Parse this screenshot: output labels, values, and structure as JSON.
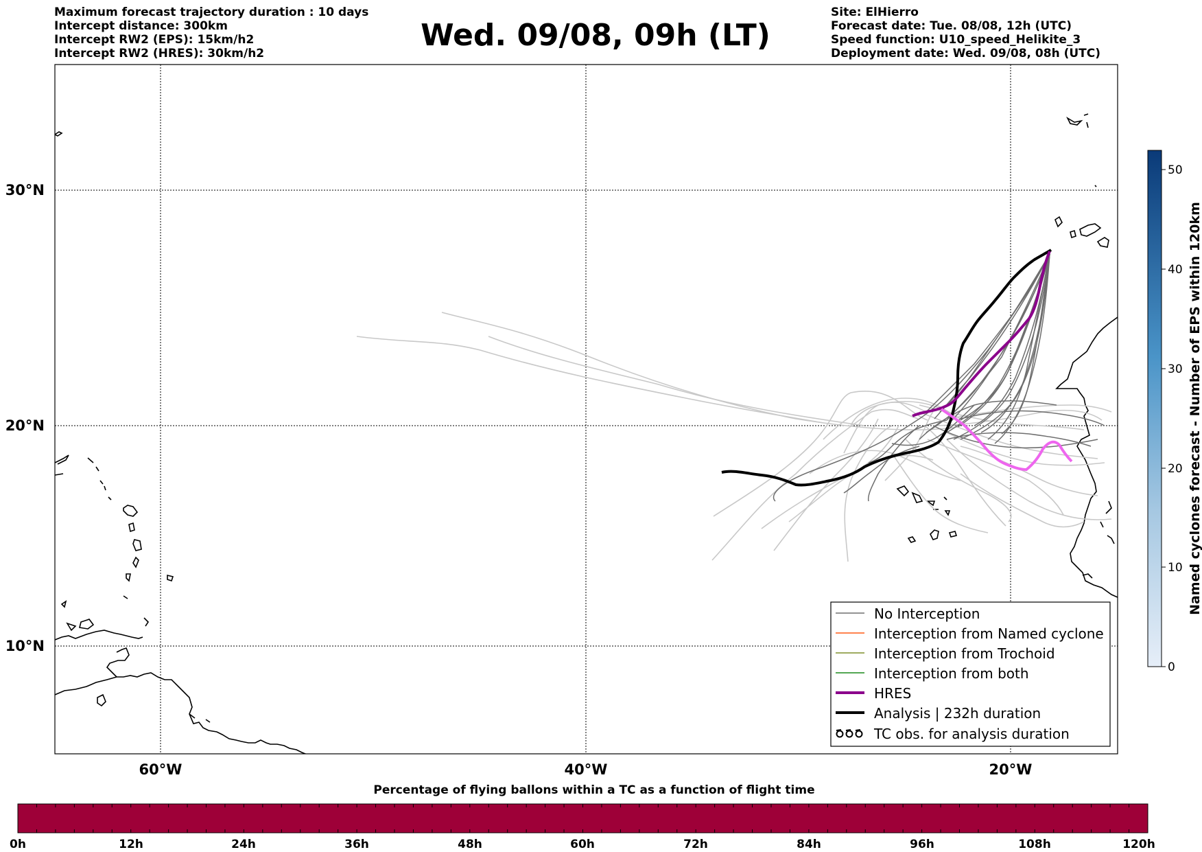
{
  "header": {
    "left_lines": [
      "Maximum forecast trajectory duration : 10 days",
      "Intercept distance: 300km",
      "Intercept RW2 (EPS):  15km/h2",
      "Intercept RW2 (HRES): 30km/h2"
    ],
    "title": "Wed. 09/08, 09h (LT)",
    "right_lines": [
      "Site: ElHierro",
      "Forecast date: Tue. 08/08, 12h (UTC)",
      "Speed function: U10_speed_Helikite_3",
      "Deployment date: Wed. 09/08, 08h (UTC)"
    ]
  },
  "map": {
    "lat_labels": [
      "30°N",
      "20°N",
      "10°N"
    ],
    "lon_labels": [
      "60°W",
      "40°W",
      "20°W"
    ],
    "grid": true,
    "colors": {
      "no_interception": "#6e6e6e",
      "faded_trajectory": "#c8c8c8",
      "named_cyclone": "#ff5a14",
      "trochoid": "#7f8f2a",
      "both": "#1a8a1a",
      "hres": "#8b008b",
      "hres_late": "#ee66ee",
      "analysis": "#000000"
    }
  },
  "legend": {
    "items": [
      {
        "label": "No Interception",
        "swatch": "no_interception"
      },
      {
        "label": "Interception from Named cyclone",
        "swatch": "named_cyclone"
      },
      {
        "label": "Interception from Trochoid",
        "swatch": "trochoid"
      },
      {
        "label": "Interception from both",
        "swatch": "both"
      },
      {
        "label": "HRES",
        "swatch": "hres"
      },
      {
        "label": "Analysis | 232h duration",
        "swatch": "analysis"
      },
      {
        "label": "TC obs. for analysis duration",
        "swatch": "tc-symbol-icon"
      }
    ]
  },
  "colorbar": {
    "label": "Named cyclones forecast - Number of EPS within 120km",
    "ticks": [
      "50",
      "40",
      "30",
      "20",
      "10",
      "0"
    ],
    "color_low": "#e6eef8",
    "color_high": "#0a3a78"
  },
  "bottom_bar": {
    "caption": "Percentage of flying ballons within a TC as a function of flight time",
    "ticks": [
      "0h",
      "12h",
      "24h",
      "36h",
      "48h",
      "60h",
      "72h",
      "84h",
      "96h",
      "108h",
      "120h"
    ],
    "fill_color": "#9e0038"
  }
}
